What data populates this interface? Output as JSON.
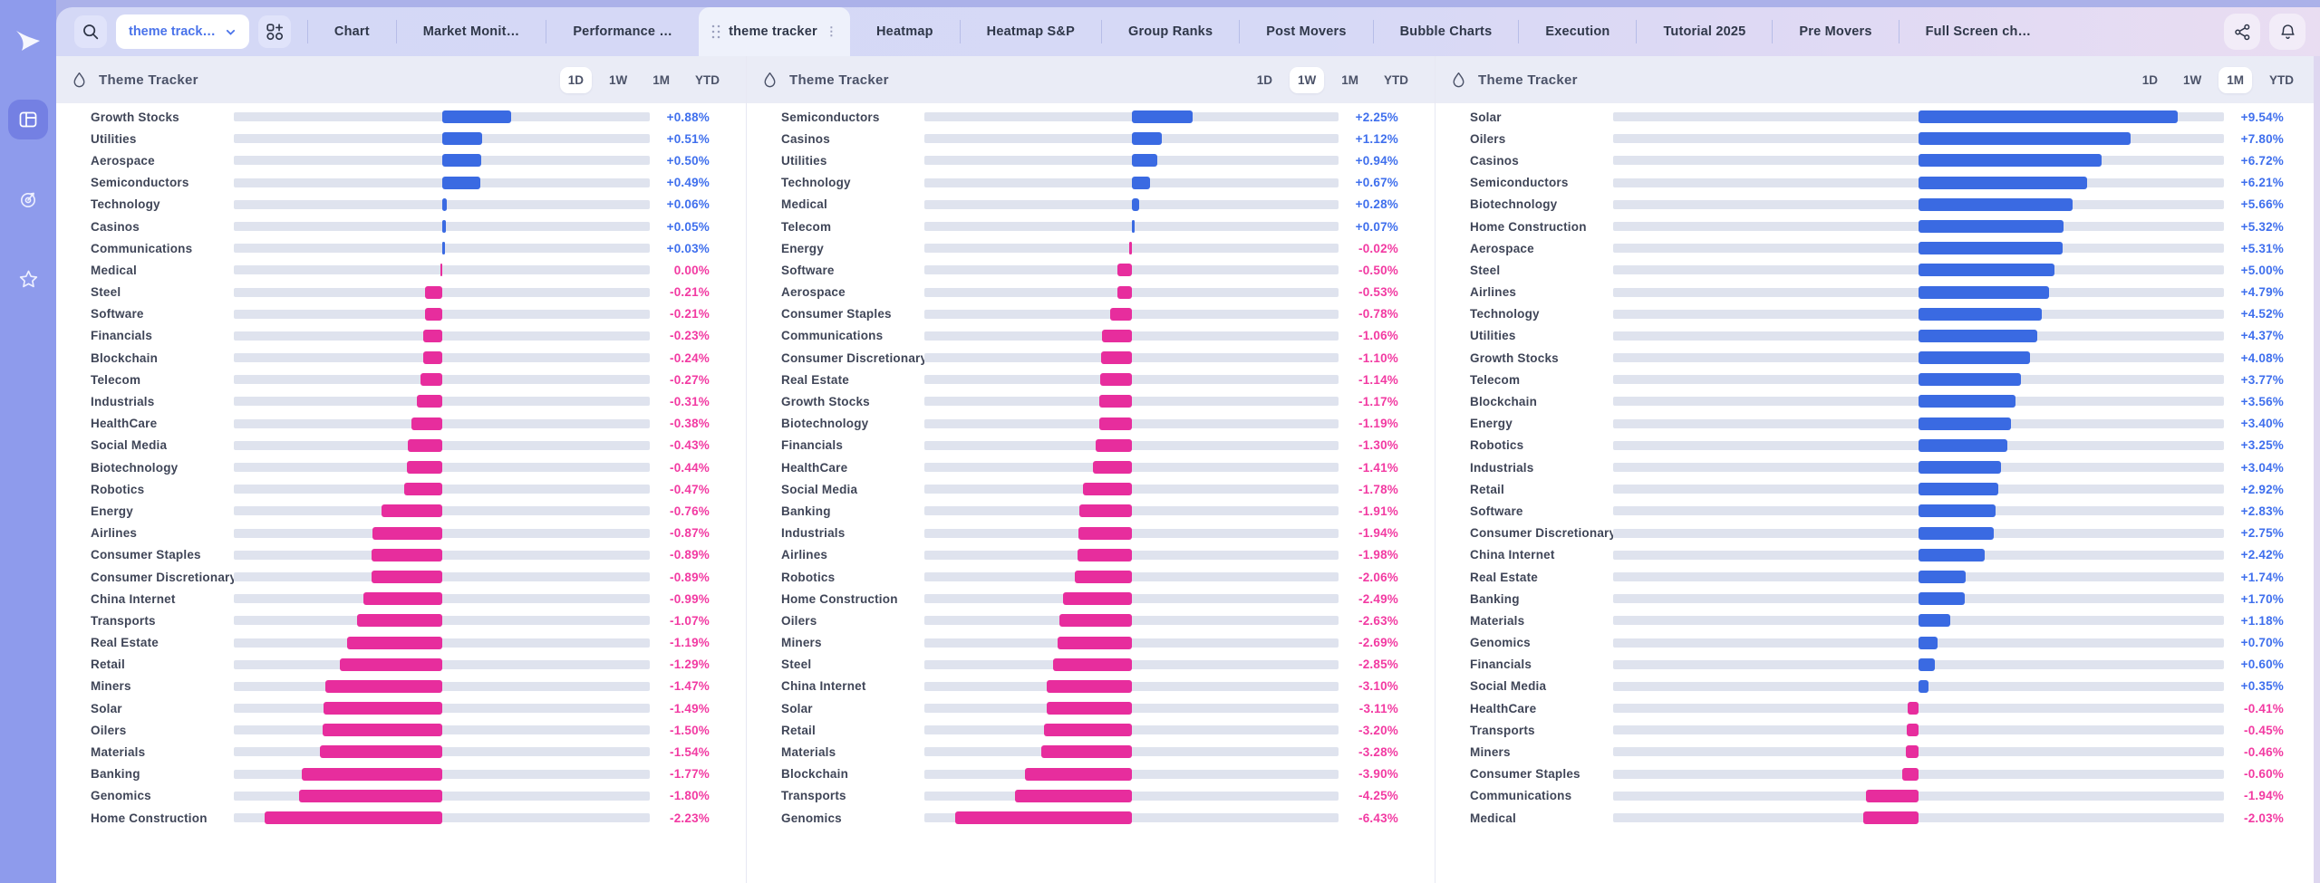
{
  "sidebar": {
    "logo_icon": "play-arrow-logo",
    "items": [
      {
        "name": "dashboard",
        "icon": "layout-icon",
        "active": true
      },
      {
        "name": "target",
        "icon": "target-icon",
        "active": false
      },
      {
        "name": "favorites",
        "icon": "star-icon",
        "active": false
      }
    ]
  },
  "topbar": {
    "search_icon": "magnifier",
    "workspace_dropdown": {
      "value": "theme track…",
      "chevron": "down"
    },
    "add_widget_icon": "grid-plus",
    "tabs": [
      {
        "label": "Chart",
        "active": false
      },
      {
        "label": "Market Monit…",
        "active": false
      },
      {
        "label": "Performance …",
        "active": false
      },
      {
        "label": "theme tracker",
        "active": true
      },
      {
        "label": "Heatmap",
        "active": false
      },
      {
        "label": "Heatmap S&P",
        "active": false
      },
      {
        "label": "Group Ranks",
        "active": false
      },
      {
        "label": "Post Movers",
        "active": false
      },
      {
        "label": "Bubble Charts",
        "active": false
      },
      {
        "label": "Execution",
        "active": false
      },
      {
        "label": "Tutorial 2025",
        "active": false
      },
      {
        "label": "Pre Movers",
        "active": false
      },
      {
        "label": "Full Screen ch…",
        "active": false
      }
    ],
    "actions": [
      {
        "name": "share",
        "icon": "share-nodes-icon"
      },
      {
        "name": "notifications",
        "icon": "bell-icon"
      }
    ]
  },
  "panels": [
    {
      "title": "Theme Tracker",
      "icon": "droplet-icon",
      "timeframes": [
        "1D",
        "1W",
        "1M",
        "YTD"
      ],
      "active_timeframe": "1D",
      "rows": [
        [
          "Growth Stocks",
          "+0.88%"
        ],
        [
          "Utilities",
          "+0.51%"
        ],
        [
          "Aerospace",
          "+0.50%"
        ],
        [
          "Semiconductors",
          "+0.49%"
        ],
        [
          "Technology",
          "+0.06%"
        ],
        [
          "Casinos",
          "+0.05%"
        ],
        [
          "Communications",
          "+0.03%"
        ],
        [
          "Medical",
          "0.00%"
        ],
        [
          "Steel",
          "-0.21%"
        ],
        [
          "Software",
          "-0.21%"
        ],
        [
          "Financials",
          "-0.23%"
        ],
        [
          "Blockchain",
          "-0.24%"
        ],
        [
          "Telecom",
          "-0.27%"
        ],
        [
          "Industrials",
          "-0.31%"
        ],
        [
          "HealthCare",
          "-0.38%"
        ],
        [
          "Social Media",
          "-0.43%"
        ],
        [
          "Biotechnology",
          "-0.44%"
        ],
        [
          "Robotics",
          "-0.47%"
        ],
        [
          "Energy",
          "-0.76%"
        ],
        [
          "Airlines",
          "-0.87%"
        ],
        [
          "Consumer Staples",
          "-0.89%"
        ],
        [
          "Consumer Discretionary",
          "-0.89%"
        ],
        [
          "China Internet",
          "-0.99%"
        ],
        [
          "Transports",
          "-1.07%"
        ],
        [
          "Real Estate",
          "-1.19%"
        ],
        [
          "Retail",
          "-1.29%"
        ],
        [
          "Miners",
          "-1.47%"
        ],
        [
          "Solar",
          "-1.49%"
        ],
        [
          "Oilers",
          "-1.50%"
        ],
        [
          "Materials",
          "-1.54%"
        ],
        [
          "Banking",
          "-1.77%"
        ],
        [
          "Genomics",
          "-1.80%"
        ],
        [
          "Home Construction",
          "-2.23%"
        ]
      ]
    },
    {
      "title": "Theme Tracker",
      "icon": "droplet-icon",
      "timeframes": [
        "1D",
        "1W",
        "1M",
        "YTD"
      ],
      "active_timeframe": "1W",
      "rows": [
        [
          "Semiconductors",
          "+2.25%"
        ],
        [
          "Casinos",
          "+1.12%"
        ],
        [
          "Utilities",
          "+0.94%"
        ],
        [
          "Technology",
          "+0.67%"
        ],
        [
          "Medical",
          "+0.28%"
        ],
        [
          "Telecom",
          "+0.07%"
        ],
        [
          "Energy",
          "-0.02%"
        ],
        [
          "Software",
          "-0.50%"
        ],
        [
          "Aerospace",
          "-0.53%"
        ],
        [
          "Consumer Staples",
          "-0.78%"
        ],
        [
          "Communications",
          "-1.06%"
        ],
        [
          "Consumer Discretionary",
          "-1.10%"
        ],
        [
          "Real Estate",
          "-1.14%"
        ],
        [
          "Growth Stocks",
          "-1.17%"
        ],
        [
          "Biotechnology",
          "-1.19%"
        ],
        [
          "Financials",
          "-1.30%"
        ],
        [
          "HealthCare",
          "-1.41%"
        ],
        [
          "Social Media",
          "-1.78%"
        ],
        [
          "Banking",
          "-1.91%"
        ],
        [
          "Industrials",
          "-1.94%"
        ],
        [
          "Airlines",
          "-1.98%"
        ],
        [
          "Robotics",
          "-2.06%"
        ],
        [
          "Home Construction",
          "-2.49%"
        ],
        [
          "Oilers",
          "-2.63%"
        ],
        [
          "Miners",
          "-2.69%"
        ],
        [
          "Steel",
          "-2.85%"
        ],
        [
          "China Internet",
          "-3.10%"
        ],
        [
          "Solar",
          "-3.11%"
        ],
        [
          "Retail",
          "-3.20%"
        ],
        [
          "Materials",
          "-3.28%"
        ],
        [
          "Blockchain",
          "-3.90%"
        ],
        [
          "Transports",
          "-4.25%"
        ],
        [
          "Genomics",
          "-6.43%"
        ]
      ]
    },
    {
      "title": "Theme Tracker",
      "icon": "droplet-icon",
      "timeframes": [
        "1D",
        "1W",
        "1M",
        "YTD"
      ],
      "active_timeframe": "1M",
      "rows": [
        [
          "Solar",
          "+9.54%"
        ],
        [
          "Oilers",
          "+7.80%"
        ],
        [
          "Casinos",
          "+6.72%"
        ],
        [
          "Semiconductors",
          "+6.21%"
        ],
        [
          "Biotechnology",
          "+5.66%"
        ],
        [
          "Home Construction",
          "+5.32%"
        ],
        [
          "Aerospace",
          "+5.31%"
        ],
        [
          "Steel",
          "+5.00%"
        ],
        [
          "Airlines",
          "+4.79%"
        ],
        [
          "Technology",
          "+4.52%"
        ],
        [
          "Utilities",
          "+4.37%"
        ],
        [
          "Growth Stocks",
          "+4.08%"
        ],
        [
          "Telecom",
          "+3.77%"
        ],
        [
          "Blockchain",
          "+3.56%"
        ],
        [
          "Energy",
          "+3.40%"
        ],
        [
          "Robotics",
          "+3.25%"
        ],
        [
          "Industrials",
          "+3.04%"
        ],
        [
          "Retail",
          "+2.92%"
        ],
        [
          "Software",
          "+2.83%"
        ],
        [
          "Consumer Discretionary",
          "+2.75%"
        ],
        [
          "China Internet",
          "+2.42%"
        ],
        [
          "Real Estate",
          "+1.74%"
        ],
        [
          "Banking",
          "+1.70%"
        ],
        [
          "Materials",
          "+1.18%"
        ],
        [
          "Genomics",
          "+0.70%"
        ],
        [
          "Financials",
          "+0.60%"
        ],
        [
          "Social Media",
          "+0.35%"
        ],
        [
          "HealthCare",
          "-0.41%"
        ],
        [
          "Transports",
          "-0.45%"
        ],
        [
          "Miners",
          "-0.46%"
        ],
        [
          "Consumer Staples",
          "-0.60%"
        ],
        [
          "Communications",
          "-1.94%"
        ],
        [
          "Medical",
          "-2.03%"
        ]
      ]
    }
  ],
  "colors": {
    "pos": "#3f6fed",
    "neg": "#f23aa2",
    "bar-pos": "#3a6ae2",
    "bar-neg": "#e72d9d",
    "track": "#dfe3ee"
  }
}
